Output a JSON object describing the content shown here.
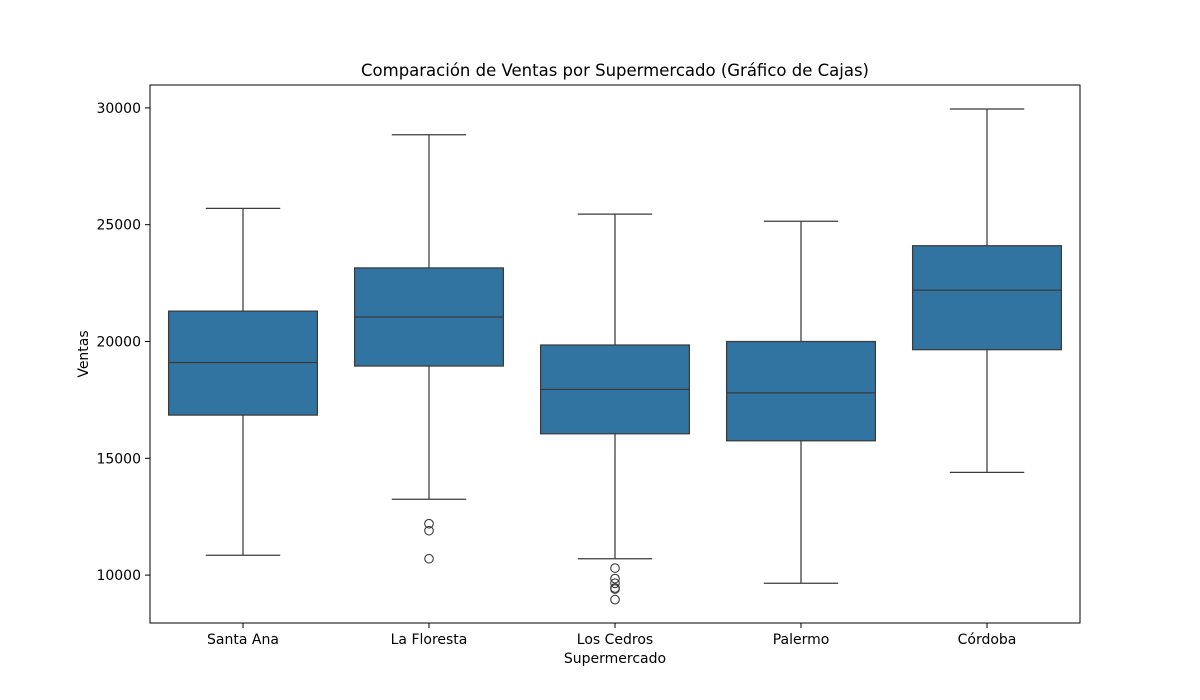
{
  "chart_data": {
    "type": "box",
    "title": "Comparación de Ventas por Supermercado (Gráfico de Cajas)",
    "xlabel": "Supermercado",
    "ylabel": "Ventas",
    "ylim": [
      7950,
      30980
    ],
    "yticks": [
      10000,
      15000,
      20000,
      25000,
      30000
    ],
    "grid": false,
    "colors": {
      "box_fill": "#3274a1",
      "line": "#3b3b3b",
      "axis": "#000000"
    },
    "categories": [
      "Santa Ana",
      "La Floresta",
      "Los Cedros",
      "Palermo",
      "Córdoba"
    ],
    "boxes": [
      {
        "name": "Santa Ana",
        "whisker_low": 10850,
        "q1": 16850,
        "median": 19100,
        "q3": 21300,
        "whisker_high": 25700,
        "outliers": []
      },
      {
        "name": "La Floresta",
        "whisker_low": 13250,
        "q1": 18950,
        "median": 21050,
        "q3": 23150,
        "whisker_high": 28850,
        "outliers": [
          12200,
          11900,
          10700
        ]
      },
      {
        "name": "Los Cedros",
        "whisker_low": 10700,
        "q1": 16050,
        "median": 17950,
        "q3": 19850,
        "whisker_high": 25450,
        "outliers": [
          10300,
          9850,
          9650,
          9450,
          9400,
          8950
        ]
      },
      {
        "name": "Palermo",
        "whisker_low": 9650,
        "q1": 15750,
        "median": 17800,
        "q3": 20000,
        "whisker_high": 25150,
        "outliers": []
      },
      {
        "name": "Córdoba",
        "whisker_low": 14400,
        "q1": 19650,
        "median": 22200,
        "q3": 24100,
        "whisker_high": 29950,
        "outliers": []
      }
    ]
  }
}
